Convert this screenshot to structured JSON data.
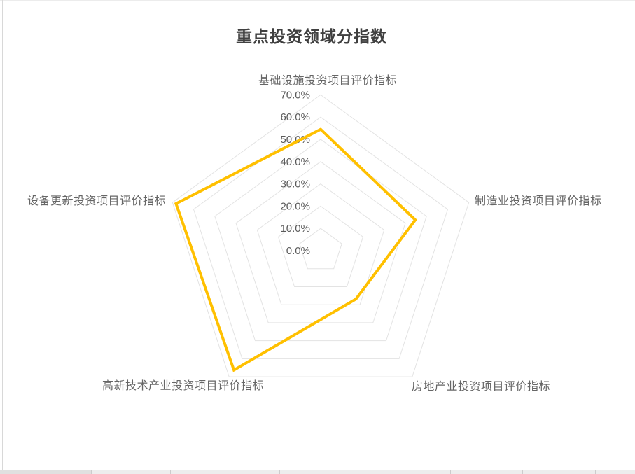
{
  "page": {
    "title": "重点投资领域分指数"
  },
  "chart_data": {
    "type": "radar",
    "title": "重点投资领域分指数",
    "indicators": [
      {
        "label": "基础设施投资项目评价指标",
        "max": 70
      },
      {
        "label": "制造业投资项目评价指标",
        "max": 70
      },
      {
        "label": "房地产业投资项目评价指标",
        "max": 70
      },
      {
        "label": "高新技术产业投资项目评价指标",
        "max": 70
      },
      {
        "label": "设备更新投资项目评价指标",
        "max": 70
      }
    ],
    "series": [
      {
        "name": "重点投资领域分指数",
        "values_pct": [
          54.5,
          44.7,
          26.9,
          66.3,
          68.3
        ],
        "color": "#FFC000"
      }
    ],
    "axis_ticks": [
      "0.0%",
      "10.0%",
      "20.0%",
      "30.0%",
      "40.0%",
      "50.0%",
      "60.0%",
      "70.0%"
    ],
    "axis_min_pct": 0,
    "axis_max_pct": 70,
    "tick_step_pct": 10,
    "grid": "on",
    "grid_shape": "pentagon",
    "grid_color": "#e3e3e3",
    "tick_label_color": "#595959",
    "category_label_color": "#666666",
    "title_color": "#404040",
    "legend_position": "none"
  }
}
